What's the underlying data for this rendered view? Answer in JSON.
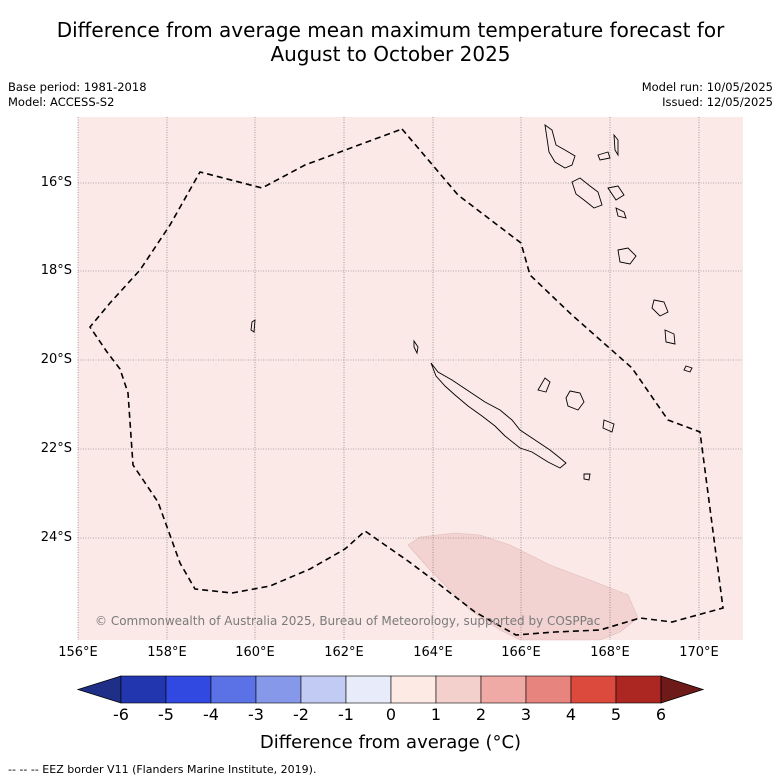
{
  "title_line1": "Difference from average mean maximum temperature forecast for",
  "title_line2": "August to October 2025",
  "base_period": "Base period: 1981-2018",
  "model": "Model: ACCESS-S2",
  "model_run": "Model run: 10/05/2025",
  "issued": "Issued: 12/05/2025",
  "latitude_labels": [
    "16°S",
    "18°S",
    "20°S",
    "22°S",
    "24°S"
  ],
  "longitude_labels": [
    "156°E",
    "158°E",
    "160°E",
    "162°E",
    "164°E",
    "166°E",
    "168°E",
    "170°E"
  ],
  "colorbar_ticks": [
    "-6",
    "-5",
    "-4",
    "-3",
    "-2",
    "-1",
    "0",
    "1",
    "2",
    "3",
    "4",
    "5",
    "6"
  ],
  "colorbar_colors": [
    "#1f2f87",
    "#2236b0",
    "#3149e0",
    "#5a72e6",
    "#8598ea",
    "#c2cbf4",
    "#e8ebf9",
    "#fdeae4",
    "#f4d0cc",
    "#efaaa5",
    "#e8847e",
    "#db4a3d",
    "#ad2722",
    "#6e1a18"
  ],
  "colorbar_label": "Difference from average (°C)",
  "credit": "© Commonwealth of Australia 2025, Bureau of Meteorology, supported by COSPPac",
  "footer": "-- -- -- EEZ border V11 (Flanders Marine Institute, 2019).",
  "map": {
    "background_anomaly_category": "0 to 1",
    "background_color": "#fbe9e7",
    "patch_anomaly_category": "1 to 2",
    "patch_color": "#f2d3d1",
    "eez_line_style": "dashed"
  }
}
